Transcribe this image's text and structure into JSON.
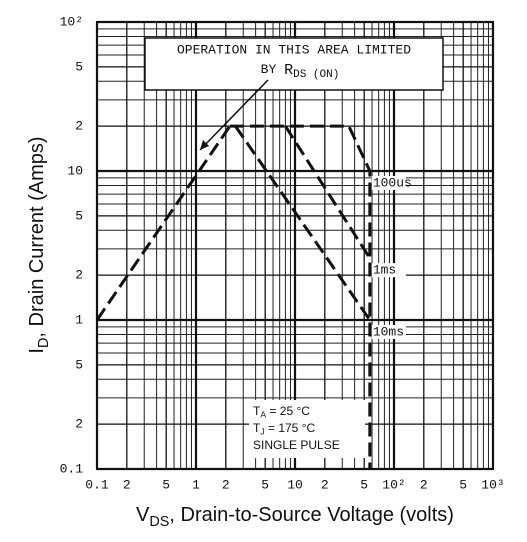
{
  "chart_data": {
    "type": "line",
    "xlog": true,
    "ylog": true,
    "grid": true,
    "xlim": [
      0.1,
      1000
    ],
    "ylim": [
      0.1,
      100
    ],
    "xticks": [
      0.1,
      {
        "value": 0.2,
        "label": "2"
      },
      {
        "value": 0.5,
        "label": "5"
      },
      1,
      {
        "value": 2,
        "label": "2"
      },
      {
        "value": 5,
        "label": "5"
      },
      10,
      {
        "value": 20,
        "label": "2"
      },
      {
        "value": 50,
        "label": "5"
      },
      {
        "value": 100,
        "label": "10²"
      },
      {
        "value": 200,
        "label": "2"
      },
      {
        "value": 500,
        "label": "5"
      },
      {
        "value": 1000,
        "label": "10³"
      }
    ],
    "yticks": [
      0.1,
      {
        "value": 0.2,
        "label": "2"
      },
      {
        "value": 0.5,
        "label": "5"
      },
      1,
      {
        "value": 2,
        "label": "2"
      },
      {
        "value": 5,
        "label": "5"
      },
      10,
      {
        "value": 20,
        "label": "2"
      },
      {
        "value": 50,
        "label": "5"
      },
      {
        "value": 100,
        "label": "10²"
      }
    ],
    "xgrid": [
      0.3,
      0.4,
      0.6,
      0.7,
      0.8,
      0.9,
      3,
      4,
      6,
      7,
      8,
      9,
      30,
      40,
      60,
      70,
      80,
      90,
      300,
      400,
      600,
      700,
      800,
      900
    ],
    "ygrid": [
      0.3,
      0.4,
      0.6,
      0.7,
      0.8,
      0.9,
      3,
      4,
      6,
      7,
      8,
      9,
      30,
      40,
      60,
      70,
      80,
      90
    ],
    "xlabel": {
      "main": "V",
      "sub": "DS",
      "rest": ", Drain-to-Source Voltage (volts)"
    },
    "ylabel": {
      "main": "I",
      "sub": "D",
      "rest": ", Drain Current (Amps)"
    },
    "annotation": {
      "line1": "OPERATION IN THIS AREA LIMITED",
      "line2": "BY ",
      "main": "R",
      "sub": "DS (ON)"
    },
    "conditions": [
      {
        "main": "T",
        "sub": "A",
        "rest": " = 25 °C"
      },
      {
        "main": "T",
        "sub": "J",
        "rest": " = 175 °C"
      },
      {
        "main": "SINGLE PULSE"
      }
    ],
    "series": [
      {
        "color": "#111111",
        "x": [
          0.1,
          2.2
        ],
        "values": [
          1,
          20
        ]
      },
      {
        "name": "100us",
        "color": "#111111",
        "x": [
          2.2,
          35,
          57,
          57
        ],
        "values": [
          20,
          20,
          10,
          0.1
        ]
      },
      {
        "name": "1ms",
        "color": "#111111",
        "x": [
          8,
          57
        ],
        "values": [
          20,
          2.6
        ]
      },
      {
        "name": "10ms",
        "color": "#111111",
        "x": [
          2.5,
          57
        ],
        "values": [
          20,
          1
        ]
      }
    ]
  }
}
